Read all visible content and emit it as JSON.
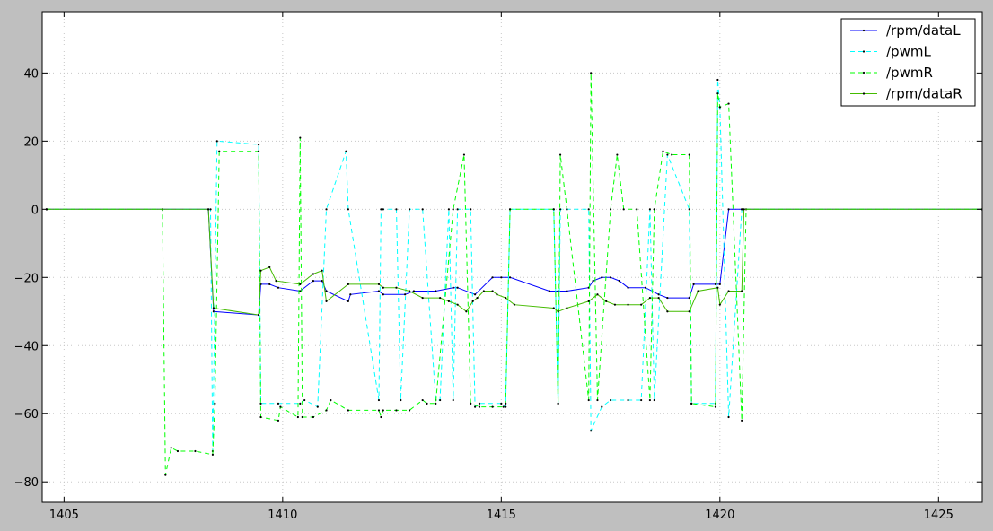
{
  "chart_data": {
    "type": "line",
    "title": "",
    "xlabel": "",
    "ylabel": "",
    "xlim": [
      1404.5,
      1426
    ],
    "ylim": [
      -86,
      58
    ],
    "xticks": [
      1405,
      1410,
      1415,
      1420,
      1425
    ],
    "yticks": [
      -80,
      -60,
      -40,
      -20,
      0,
      20,
      40
    ],
    "grid": true,
    "legend_position": "top-right",
    "series": [
      {
        "name": "/rpm/dataL",
        "color": "#0000ff",
        "linestyle": "solid",
        "x": [
          1404.6,
          1408.3,
          1408.42,
          1409.45,
          1409.5,
          1409.7,
          1409.9,
          1410.4,
          1410.7,
          1410.9,
          1411.0,
          1411.5,
          1411.55,
          1412.2,
          1412.3,
          1412.8,
          1413.0,
          1413.5,
          1413.9,
          1414.0,
          1414.4,
          1414.8,
          1415.0,
          1415.2,
          1416.1,
          1416.3,
          1416.5,
          1417.0,
          1417.1,
          1417.3,
          1417.5,
          1417.7,
          1417.9,
          1418.3,
          1418.6,
          1418.8,
          1419.3,
          1419.4,
          1419.9,
          1420.0,
          1420.2,
          1420.5,
          1426
        ],
        "y": [
          0,
          0,
          -30,
          -31,
          -22,
          -22,
          -23,
          -24,
          -21,
          -21,
          -24,
          -27,
          -25,
          -24,
          -25,
          -25,
          -24,
          -24,
          -23,
          -23,
          -25,
          -20,
          -20,
          -20,
          -24,
          -24,
          -24,
          -23,
          -21,
          -20,
          -20,
          -21,
          -23,
          -23,
          -25,
          -26,
          -26,
          -22,
          -22,
          -22,
          0,
          0,
          0
        ]
      },
      {
        "name": "/pwmL",
        "color": "#00ffff",
        "linestyle": "dashed",
        "x": [
          1404.6,
          1408.35,
          1408.4,
          1408.5,
          1409.45,
          1409.5,
          1409.9,
          1410.4,
          1410.5,
          1410.8,
          1411.0,
          1411.45,
          1411.5,
          1412.2,
          1412.25,
          1412.3,
          1412.6,
          1412.7,
          1412.9,
          1413.2,
          1413.5,
          1413.6,
          1413.8,
          1413.9,
          1414.0,
          1414.3,
          1414.4,
          1414.5,
          1415.0,
          1415.1,
          1415.2,
          1416.2,
          1416.3,
          1416.35,
          1416.5,
          1417.0,
          1417.05,
          1417.3,
          1417.5,
          1417.9,
          1418.2,
          1418.4,
          1418.5,
          1418.8,
          1419.3,
          1419.35,
          1419.9,
          1419.95,
          1420.0,
          1420.2,
          1420.5,
          1426
        ],
        "y": [
          0,
          0,
          -71,
          20,
          19,
          -57,
          -57,
          -57,
          -56,
          -58,
          0,
          17,
          0,
          -56,
          0,
          0,
          0,
          -56,
          0,
          0,
          -56,
          -56,
          0,
          -56,
          0,
          0,
          -58,
          -57,
          -57,
          -58,
          0,
          0,
          -57,
          0,
          0,
          0,
          -65,
          -58,
          -56,
          -56,
          -56,
          0,
          -56,
          16,
          0,
          -57,
          -57,
          38,
          30,
          -61,
          0,
          0
        ]
      },
      {
        "name": "/pwmR",
        "color": "#00ff00",
        "linestyle": "dashed",
        "x": [
          1404.6,
          1407.25,
          1407.32,
          1407.45,
          1407.6,
          1408.0,
          1408.4,
          1408.45,
          1408.55,
          1409.45,
          1409.5,
          1409.9,
          1409.95,
          1410.35,
          1410.4,
          1410.45,
          1410.7,
          1411.0,
          1411.1,
          1411.5,
          1412.2,
          1412.25,
          1412.3,
          1412.6,
          1412.9,
          1413.2,
          1413.3,
          1413.5,
          1413.9,
          1414.15,
          1414.3,
          1414.5,
          1414.8,
          1415.05,
          1415.1,
          1415.2,
          1416.2,
          1416.3,
          1416.35,
          1416.5,
          1417.0,
          1417.05,
          1417.2,
          1417.5,
          1417.65,
          1417.8,
          1418.1,
          1418.4,
          1418.5,
          1418.7,
          1418.9,
          1419.3,
          1419.35,
          1419.9,
          1419.95,
          1420.0,
          1420.2,
          1420.5,
          1420.6,
          1426
        ],
        "y": [
          0,
          0,
          -78,
          -70,
          -71,
          -71,
          -72,
          -57,
          17,
          17,
          -61,
          -62,
          -58,
          -61,
          21,
          -61,
          -61,
          -59,
          -56,
          -59,
          -59,
          -61,
          -59,
          -59,
          -59,
          -56,
          -57,
          -57,
          0,
          16,
          -57,
          -58,
          -58,
          -58,
          -57,
          0,
          0,
          -57,
          16,
          0,
          -56,
          40,
          -56,
          0,
          16,
          0,
          0,
          -56,
          0,
          17,
          16,
          16,
          -57,
          -58,
          34,
          30,
          31,
          -62,
          0,
          0
        ]
      },
      {
        "name": "/rpm/dataR",
        "color": "#44bb00",
        "linestyle": "solid",
        "x": [
          1404.6,
          1408.3,
          1408.42,
          1409.45,
          1409.5,
          1409.7,
          1409.85,
          1410.4,
          1410.7,
          1410.9,
          1411.0,
          1411.5,
          1412.2,
          1412.3,
          1412.6,
          1412.9,
          1413.2,
          1413.6,
          1413.8,
          1414.0,
          1414.2,
          1414.35,
          1414.45,
          1414.6,
          1414.8,
          1414.9,
          1415.1,
          1415.3,
          1416.2,
          1416.3,
          1416.5,
          1417.0,
          1417.2,
          1417.4,
          1417.6,
          1417.9,
          1418.2,
          1418.4,
          1418.6,
          1418.8,
          1419.3,
          1419.5,
          1419.95,
          1420.0,
          1420.2,
          1420.5,
          1420.55,
          1426
        ],
        "y": [
          0,
          0,
          -29,
          -31,
          -18,
          -17,
          -21,
          -22,
          -19,
          -18,
          -27,
          -22,
          -22,
          -23,
          -23,
          -24,
          -26,
          -26,
          -27,
          -28,
          -30,
          -27,
          -26,
          -24,
          -24,
          -25,
          -26,
          -28,
          -29,
          -30,
          -29,
          -27,
          -25,
          -27,
          -28,
          -28,
          -28,
          -26,
          -26,
          -30,
          -30,
          -24,
          -23,
          -28,
          -24,
          -24,
          0,
          0
        ]
      }
    ]
  }
}
